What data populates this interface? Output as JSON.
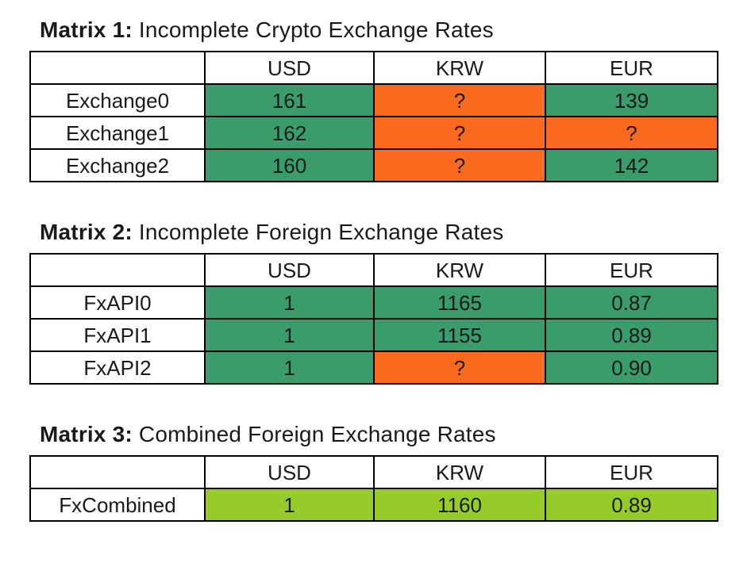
{
  "colors": {
    "known": "#3A9B6B",
    "missing": "#FA6A1E",
    "combined": "#96CB2A",
    "border": "#000000",
    "text": "#1A1A1A",
    "background": "#FFFFFF"
  },
  "matrices": [
    {
      "title_bold": "Matrix 1:",
      "title_tail": " Incomplete Crypto Exchange Rates",
      "columns": [
        "",
        "USD",
        "KRW",
        "EUR"
      ],
      "rows": [
        {
          "label": "Exchange0",
          "cells": [
            {
              "value": "161",
              "state": "known"
            },
            {
              "value": "?",
              "state": "missing"
            },
            {
              "value": "139",
              "state": "known"
            }
          ]
        },
        {
          "label": "Exchange1",
          "cells": [
            {
              "value": "162",
              "state": "known"
            },
            {
              "value": "?",
              "state": "missing"
            },
            {
              "value": "?",
              "state": "missing"
            }
          ]
        },
        {
          "label": "Exchange2",
          "cells": [
            {
              "value": "160",
              "state": "known"
            },
            {
              "value": "?",
              "state": "missing"
            },
            {
              "value": "142",
              "state": "known"
            }
          ]
        }
      ]
    },
    {
      "title_bold": "Matrix 2:",
      "title_tail": " Incomplete Foreign Exchange Rates",
      "columns": [
        "",
        "USD",
        "KRW",
        "EUR"
      ],
      "rows": [
        {
          "label": "FxAPI0",
          "cells": [
            {
              "value": "1",
              "state": "known"
            },
            {
              "value": "1165",
              "state": "known"
            },
            {
              "value": "0.87",
              "state": "known"
            }
          ]
        },
        {
          "label": "FxAPI1",
          "cells": [
            {
              "value": "1",
              "state": "known"
            },
            {
              "value": "1155",
              "state": "known"
            },
            {
              "value": "0.89",
              "state": "known"
            }
          ]
        },
        {
          "label": "FxAPI2",
          "cells": [
            {
              "value": "1",
              "state": "known"
            },
            {
              "value": "?",
              "state": "missing"
            },
            {
              "value": "0.90",
              "state": "known"
            }
          ]
        }
      ]
    },
    {
      "title_bold": "Matrix 3:",
      "title_tail": " Combined Foreign Exchange Rates",
      "columns": [
        "",
        "USD",
        "KRW",
        "EUR"
      ],
      "rows": [
        {
          "label": "FxCombined",
          "cells": [
            {
              "value": "1",
              "state": "combined"
            },
            {
              "value": "1160",
              "state": "combined"
            },
            {
              "value": "0.89",
              "state": "combined"
            }
          ]
        }
      ]
    }
  ],
  "chart_data": [
    {
      "type": "table",
      "title": "Matrix 1: Incomplete Crypto Exchange Rates",
      "columns": [
        "",
        "USD",
        "KRW",
        "EUR"
      ],
      "rows": [
        [
          "Exchange0",
          "161",
          "?",
          "139"
        ],
        [
          "Exchange1",
          "162",
          "?",
          "?"
        ],
        [
          "Exchange2",
          "160",
          "?",
          "142"
        ]
      ],
      "cell_color_legend": {
        "known": "#3A9B6B",
        "missing": "#FA6A1E"
      }
    },
    {
      "type": "table",
      "title": "Matrix 2: Incomplete Foreign Exchange Rates",
      "columns": [
        "",
        "USD",
        "KRW",
        "EUR"
      ],
      "rows": [
        [
          "FxAPI0",
          "1",
          "1165",
          "0.87"
        ],
        [
          "FxAPI1",
          "1",
          "1155",
          "0.89"
        ],
        [
          "FxAPI2",
          "1",
          "?",
          "0.90"
        ]
      ],
      "cell_color_legend": {
        "known": "#3A9B6B",
        "missing": "#FA6A1E"
      }
    },
    {
      "type": "table",
      "title": "Matrix 3: Combined Foreign Exchange Rates",
      "columns": [
        "",
        "USD",
        "KRW",
        "EUR"
      ],
      "rows": [
        [
          "FxCombined",
          "1",
          "1160",
          "0.89"
        ]
      ],
      "cell_color_legend": {
        "combined": "#96CB2A"
      }
    }
  ]
}
